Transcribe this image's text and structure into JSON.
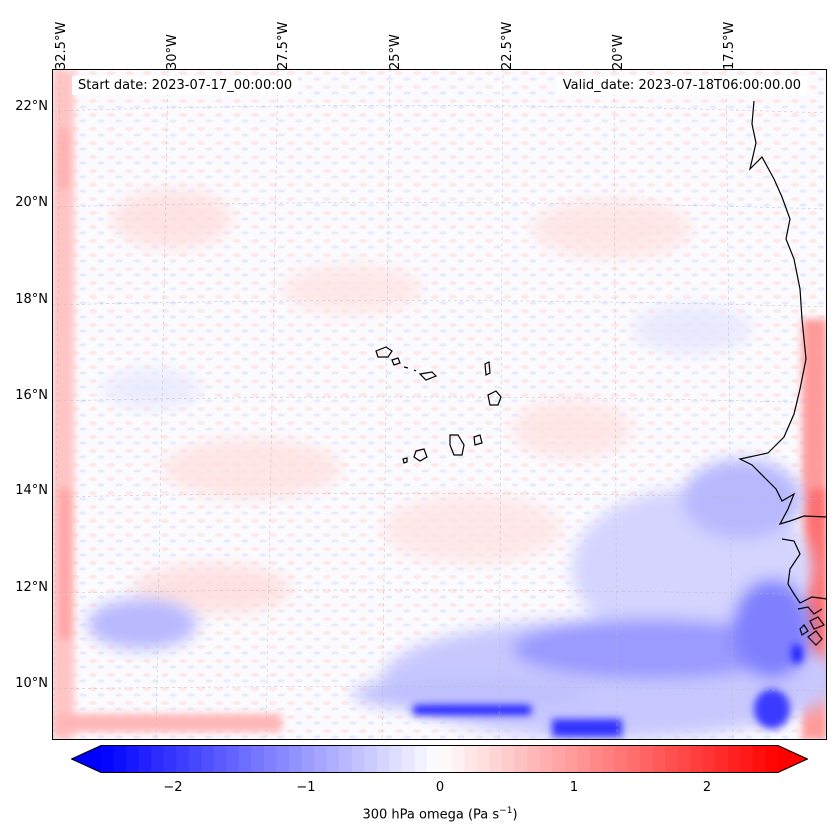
{
  "map": {
    "title_left": "Start date: 2023-07-17_00:00:00",
    "title_right": "Valid_date: 2023-07-18T06:00:00.00",
    "lon_ticks": [
      "32.5°W",
      "30°W",
      "27.5°W",
      "25°W",
      "22.5°W",
      "20°W",
      "17.5°W"
    ],
    "lat_ticks": [
      "22°N",
      "20°N",
      "18°N",
      "16°N",
      "14°N",
      "12°N",
      "10°N"
    ],
    "variable": "300 hPa omega"
  },
  "colorbar": {
    "ticks": [
      "−2",
      "−1",
      "0",
      "1",
      "2"
    ],
    "label_main": "300 hPa omega (Pa s",
    "label_sup": "−1",
    "label_end": ")",
    "vmin": -2.7,
    "vmax": 2.7,
    "colormap": "bwr",
    "color_low": "#0000ff",
    "color_mid": "#ffffff",
    "color_high": "#ff0000"
  }
}
